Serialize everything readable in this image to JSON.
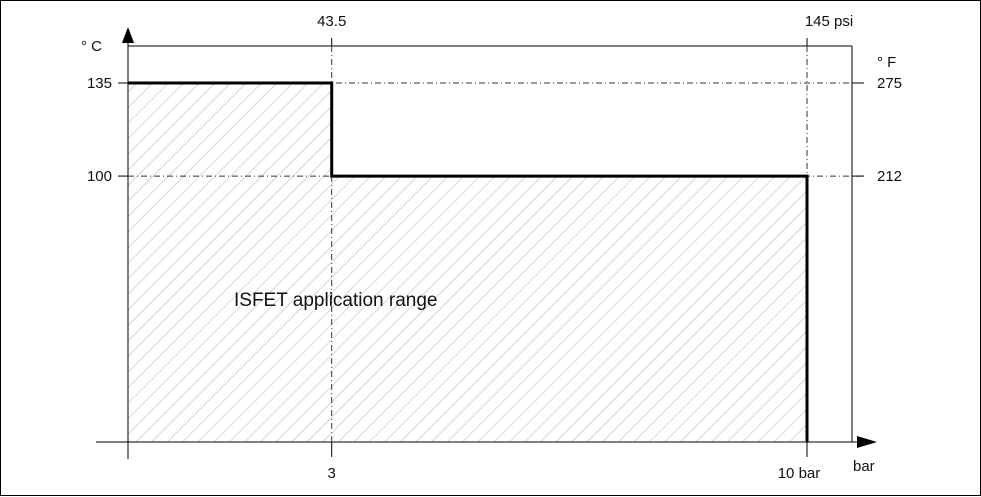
{
  "chart_data": {
    "type": "area",
    "annotation": "ISFET application range",
    "left_axis_unit": "° C",
    "right_axis_unit": "° F",
    "bottom_axis_unit": "bar",
    "top_axis_unit": "psi",
    "xlim": [
      0,
      10
    ],
    "ylim": [
      0,
      135
    ],
    "grid": false,
    "pressure_ticks_bar": [
      {
        "value": 3,
        "label": "3"
      },
      {
        "value": 10,
        "label": "10 bar"
      }
    ],
    "pressure_ticks_psi": [
      {
        "value": 3,
        "label": "43.5"
      },
      {
        "value": 10,
        "label": "145 psi"
      }
    ],
    "temperature_ticks_c": [
      {
        "value": 135,
        "label": "135"
      },
      {
        "value": 100,
        "label": "100"
      }
    ],
    "temperature_ticks_f": [
      {
        "value": 135,
        "label": "275"
      },
      {
        "value": 100,
        "label": "212"
      }
    ],
    "series": [
      {
        "x": [
          0,
          3,
          3,
          10,
          10
        ],
        "y": [
          135,
          135,
          100,
          100,
          0
        ]
      }
    ]
  }
}
